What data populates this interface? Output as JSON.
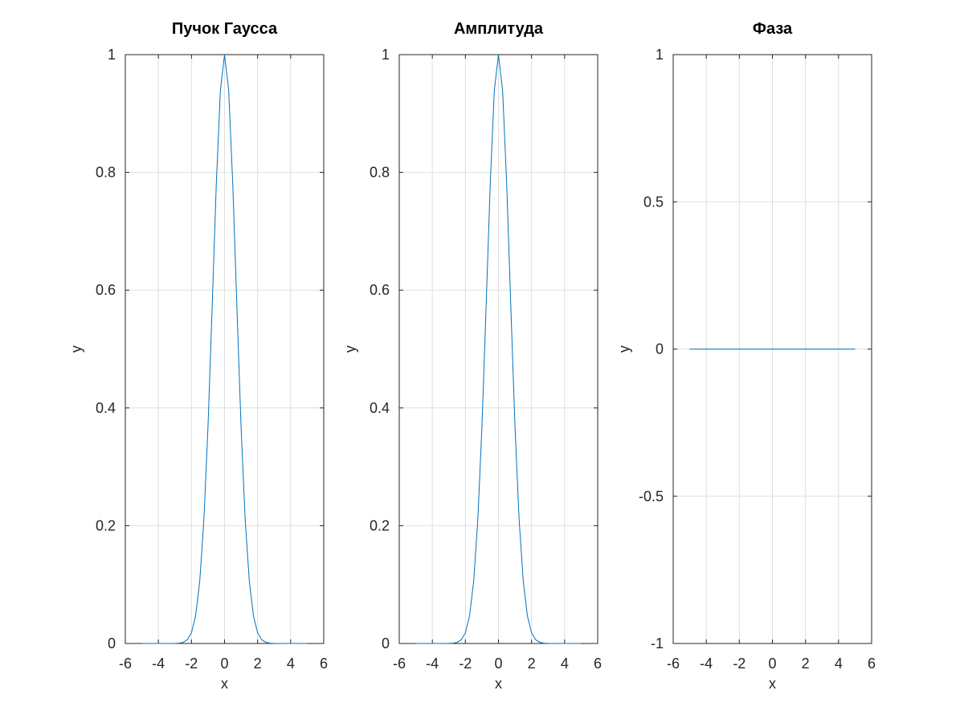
{
  "chart_data": [
    {
      "type": "line",
      "title": "Пучок Гаусса",
      "xlabel": "x",
      "ylabel": "y",
      "xlim": [
        -6,
        6
      ],
      "ylim": [
        0,
        1
      ],
      "xticks": [
        -6,
        -4,
        -2,
        0,
        2,
        4,
        6
      ],
      "yticks": [
        0,
        0.2,
        0.4,
        0.6,
        0.8,
        1
      ],
      "xtick_labels": [
        "-6",
        "-4",
        "-2",
        "0",
        "2",
        "4",
        "6"
      ],
      "ytick_labels": [
        "0",
        "0.2",
        "0.4",
        "0.6",
        "0.8",
        "1"
      ],
      "grid": true,
      "color": "#0072bd",
      "series": [
        {
          "x": [
            -5,
            -4.5,
            -4,
            -3.5,
            -3,
            -2.75,
            -2.5,
            -2.25,
            -2,
            -1.75,
            -1.5,
            -1.25,
            -1,
            -0.75,
            -0.5,
            -0.25,
            0,
            0.25,
            0.5,
            0.75,
            1,
            1.25,
            1.5,
            1.75,
            2,
            2.25,
            2.5,
            2.75,
            3,
            3.5,
            4,
            4.5,
            5
          ],
          "y": [
            0,
            0,
            0,
            0,
            0.0001,
            0.0005,
            0.0019,
            0.0063,
            0.0183,
            0.0468,
            0.1054,
            0.2096,
            0.3679,
            0.5698,
            0.7788,
            0.9394,
            1,
            0.9394,
            0.7788,
            0.5698,
            0.3679,
            0.2096,
            0.1054,
            0.0468,
            0.0183,
            0.0063,
            0.0019,
            0.0005,
            0.0001,
            0,
            0,
            0,
            0
          ]
        }
      ]
    },
    {
      "type": "line",
      "title": "Амплитуда",
      "xlabel": "x",
      "ylabel": "y",
      "xlim": [
        -6,
        6
      ],
      "ylim": [
        0,
        1
      ],
      "xticks": [
        -6,
        -4,
        -2,
        0,
        2,
        4,
        6
      ],
      "yticks": [
        0,
        0.2,
        0.4,
        0.6,
        0.8,
        1
      ],
      "xtick_labels": [
        "-6",
        "-4",
        "-2",
        "0",
        "2",
        "4",
        "6"
      ],
      "ytick_labels": [
        "0",
        "0.2",
        "0.4",
        "0.6",
        "0.8",
        "1"
      ],
      "grid": true,
      "color": "#0072bd",
      "series": [
        {
          "x": [
            -5,
            -4.5,
            -4,
            -3.5,
            -3,
            -2.75,
            -2.5,
            -2.25,
            -2,
            -1.75,
            -1.5,
            -1.25,
            -1,
            -0.75,
            -0.5,
            -0.25,
            0,
            0.25,
            0.5,
            0.75,
            1,
            1.25,
            1.5,
            1.75,
            2,
            2.25,
            2.5,
            2.75,
            3,
            3.5,
            4,
            4.5,
            5
          ],
          "y": [
            0,
            0,
            0,
            0,
            0.0001,
            0.0005,
            0.0019,
            0.0063,
            0.0183,
            0.0468,
            0.1054,
            0.2096,
            0.3679,
            0.5698,
            0.7788,
            0.9394,
            1,
            0.9394,
            0.7788,
            0.5698,
            0.3679,
            0.2096,
            0.1054,
            0.0468,
            0.0183,
            0.0063,
            0.0019,
            0.0005,
            0.0001,
            0,
            0,
            0,
            0
          ]
        }
      ]
    },
    {
      "type": "line",
      "title": "Фаза",
      "xlabel": "x",
      "ylabel": "y",
      "xlim": [
        -6,
        6
      ],
      "ylim": [
        -1,
        1
      ],
      "xticks": [
        -6,
        -4,
        -2,
        0,
        2,
        4,
        6
      ],
      "yticks": [
        -1,
        -0.5,
        0,
        0.5,
        1
      ],
      "xtick_labels": [
        "-6",
        "-4",
        "-2",
        "0",
        "2",
        "4",
        "6"
      ],
      "ytick_labels": [
        "-1",
        "-0.5",
        "0",
        "0.5",
        "1"
      ],
      "grid": true,
      "color": "#0072bd",
      "series": [
        {
          "x": [
            -5,
            5
          ],
          "y": [
            0,
            0
          ]
        }
      ]
    }
  ]
}
